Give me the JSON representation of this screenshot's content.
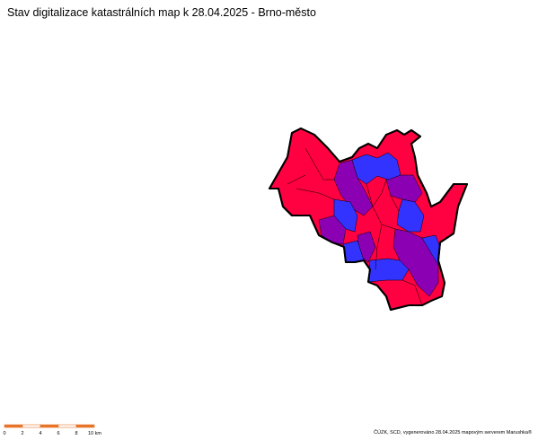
{
  "title": "Stav digitalizace katastrálních map k 28.04.2025 - Brno-město",
  "scale_bar": {
    "labels": [
      "0",
      "2",
      "4",
      "6",
      "8",
      "10 km"
    ]
  },
  "credit": "ČÚZK, SCD, vygenerováno 28.04.2025 mapovým serverem Marushka®"
}
